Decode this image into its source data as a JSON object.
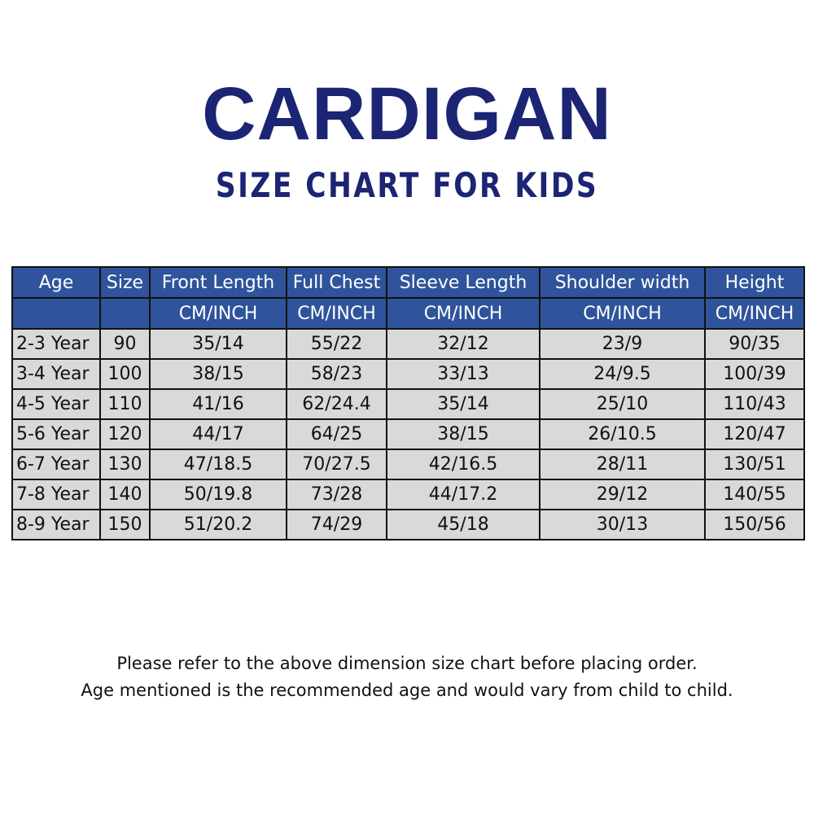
{
  "title": "CARDIGAN",
  "subtitle": "SIZE CHART FOR KIDS",
  "table": {
    "headers": [
      "Age",
      "Size",
      "Front Length",
      "Full Chest",
      "Sleeve Length",
      "Shoulder width",
      "Height"
    ],
    "units": [
      "",
      "",
      "CM/INCH",
      "CM/INCH",
      "CM/INCH",
      "CM/INCH",
      "CM/INCH"
    ],
    "rows": [
      [
        "2-3 Year",
        "90",
        "35/14",
        "55/22",
        "32/12",
        "23/9",
        "90/35"
      ],
      [
        "3-4 Year",
        "100",
        "38/15",
        "58/23",
        "33/13",
        "24/9.5",
        "100/39"
      ],
      [
        "4-5 Year",
        "110",
        "41/16",
        "62/24.4",
        "35/14",
        "25/10",
        "110/43"
      ],
      [
        "5-6 Year",
        "120",
        "44/17",
        "64/25",
        "38/15",
        "26/10.5",
        "120/47"
      ],
      [
        "6-7 Year",
        "130",
        "47/18.5",
        "70/27.5",
        "42/16.5",
        "28/11",
        "130/51"
      ],
      [
        "7-8 Year",
        "140",
        "50/19.8",
        "73/28",
        "44/17.2",
        "29/12",
        "140/55"
      ],
      [
        "8-9 Year",
        "150",
        "51/20.2",
        "74/29",
        "45/18",
        "30/13",
        "150/56"
      ]
    ]
  },
  "notes": [
    "Please refer to the above dimension size chart before placing order.",
    "Age mentioned is the recommended age and would vary from child to child."
  ],
  "colors": {
    "title": "#1c2474",
    "header": "#2f549c",
    "cell": "#d9d9d9"
  }
}
